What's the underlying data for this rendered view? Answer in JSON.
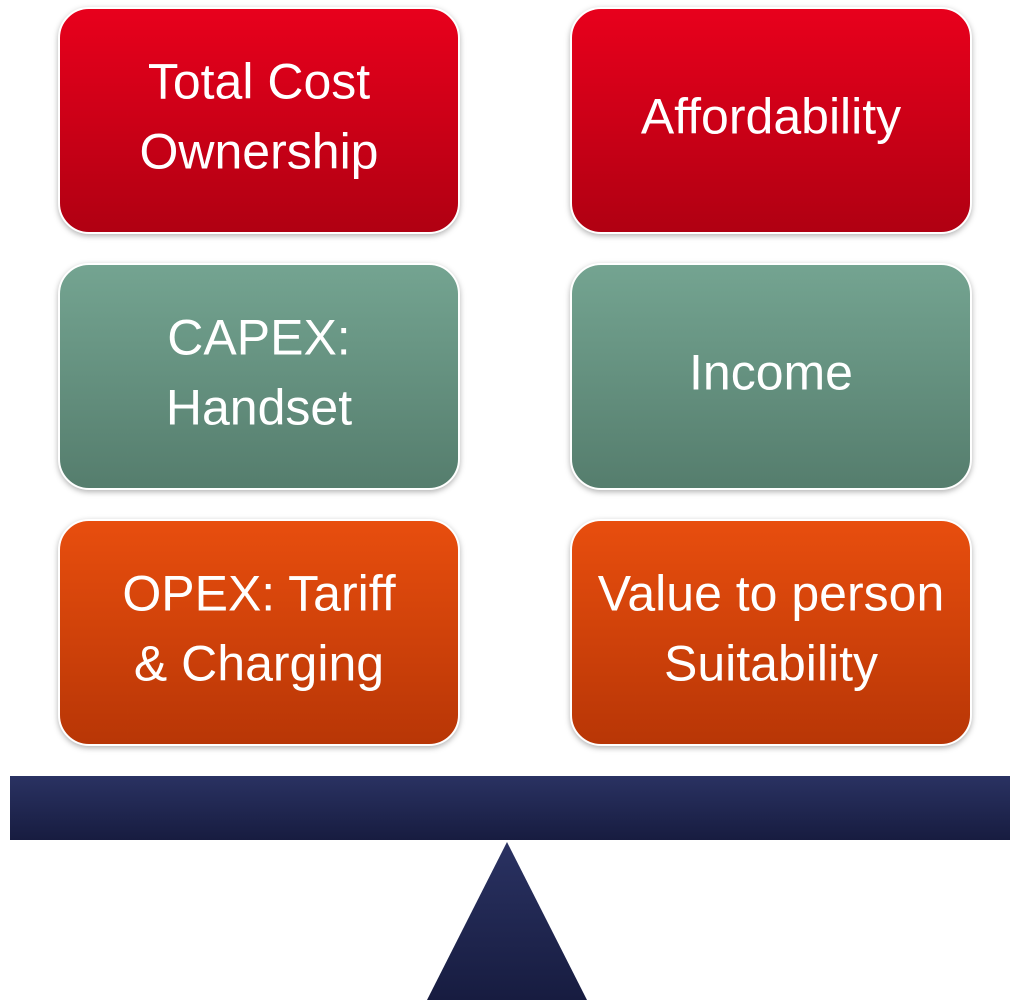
{
  "boxes": [
    {
      "lines": [
        "Total Cost",
        "Ownership"
      ]
    },
    {
      "lines": [
        "Affordability"
      ]
    },
    {
      "lines": [
        "CAPEX:",
        "Handset"
      ]
    },
    {
      "lines": [
        "Income"
      ]
    },
    {
      "lines": [
        "OPEX: Tariff",
        "& Charging"
      ]
    },
    {
      "lines": [
        "Value to person",
        "Suitability"
      ]
    }
  ]
}
